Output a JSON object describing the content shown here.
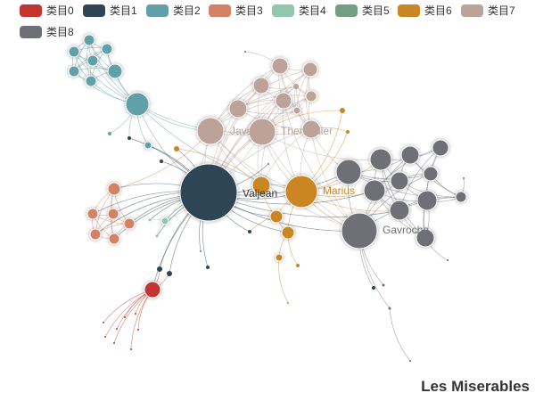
{
  "title": "Les Miserables",
  "legend": {
    "items": [
      {
        "label": "类目0",
        "color": "#c23531"
      },
      {
        "label": "类目1",
        "color": "#2f4554"
      },
      {
        "label": "类目2",
        "color": "#61a0a8"
      },
      {
        "label": "类目3",
        "color": "#d48265"
      },
      {
        "label": "类目4",
        "color": "#91c7ae"
      },
      {
        "label": "类目5",
        "color": "#749f83"
      },
      {
        "label": "类目6",
        "color": "#ca8622"
      },
      {
        "label": "类目7",
        "color": "#bda29a"
      },
      {
        "label": "类目8",
        "color": "#6e7074"
      }
    ]
  },
  "node_labels": {
    "valjean": "Valjean",
    "javert": "Javert",
    "thenardier": "Thenardier",
    "marius": "Marius",
    "gavroche": "Gavroche"
  }
}
